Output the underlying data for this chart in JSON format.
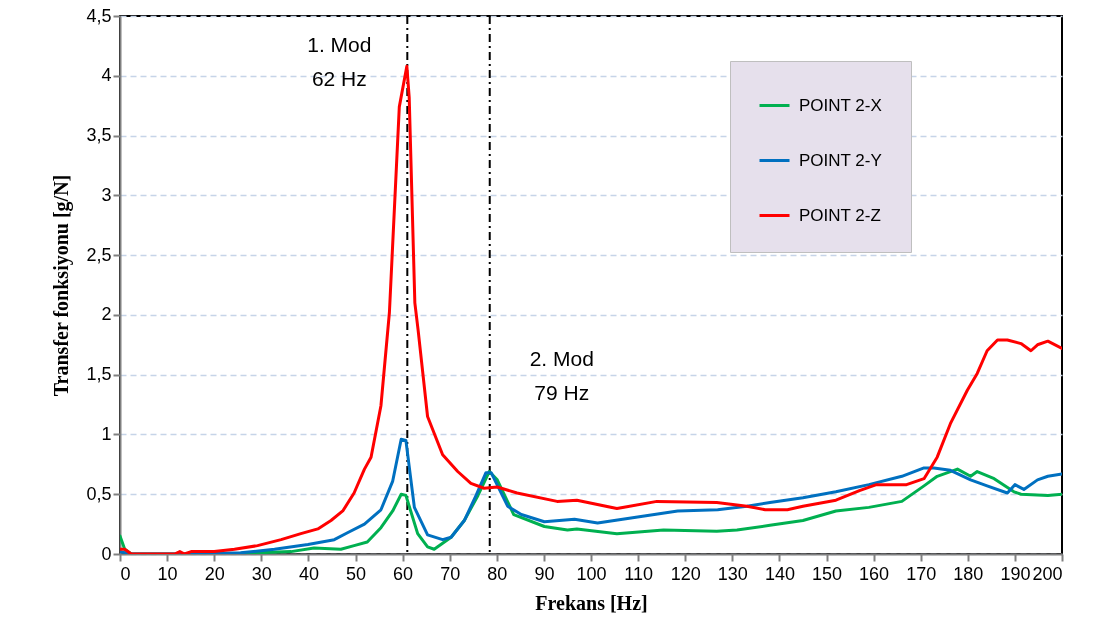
{
  "chart_data": {
    "type": "line",
    "xlabel": "Frekans [Hz]",
    "ylabel": "Transfer fonksiyonu [g/N]",
    "xlim": [
      0,
      200
    ],
    "xticks": [
      0,
      10,
      20,
      30,
      40,
      50,
      60,
      70,
      80,
      90,
      100,
      110,
      120,
      130,
      140,
      150,
      160,
      170,
      180,
      190,
      200
    ],
    "ylim": [
      0,
      4.5
    ],
    "yticks": [
      0,
      {
        "value": 0.5,
        "label": "0,5"
      },
      1,
      {
        "value": 1.5,
        "label": "1,5"
      },
      2,
      {
        "value": 2.5,
        "label": "2,5"
      },
      3,
      {
        "value": 3.5,
        "label": "3,5"
      },
      4,
      {
        "value": 4.5,
        "label": "4,5"
      }
    ],
    "grid": "y",
    "legend": "top right",
    "series": [
      {
        "name": "POINT 2-X",
        "color": "#00b050",
        "x": [
          0,
          1,
          2.4,
          25.6,
          29.2,
          36.3,
          41.2,
          46.9,
          49.7,
          52.5,
          55.4,
          57.9,
          59.7,
          60.7,
          63.2,
          65.3,
          66.7,
          70.3,
          73.1,
          76,
          78.4,
          80.1,
          83.6,
          90.1,
          95,
          97,
          105.5,
          115.4,
          126.7,
          131,
          138,
          145,
          152,
          159,
          166,
          170.7,
          173.5,
          177.8,
          180.6,
          182,
          185.6,
          189.8,
          191.3,
          197,
          200
        ],
        "values": [
          0.15,
          0.04,
          0,
          0,
          0.01,
          0.02,
          0.05,
          0.04,
          0.07,
          0.1,
          0.22,
          0.36,
          0.5,
          0.49,
          0.17,
          0.06,
          0.04,
          0.14,
          0.28,
          0.49,
          0.69,
          0.62,
          0.33,
          0.23,
          0.2,
          0.21,
          0.17,
          0.2,
          0.19,
          0.2,
          0.24,
          0.28,
          0.36,
          0.39,
          0.44,
          0.57,
          0.65,
          0.71,
          0.65,
          0.69,
          0.63,
          0.52,
          0.5,
          0.49,
          0.5
        ]
      },
      {
        "name": "POINT 2-Y",
        "color": "#0070c0",
        "x": [
          0,
          2.4,
          15,
          25.6,
          32.8,
          39.9,
          45.5,
          48.4,
          51.9,
          55.4,
          57.9,
          59.7,
          60.7,
          62.5,
          65.3,
          68.5,
          70.3,
          73.1,
          75.6,
          77.7,
          78.8,
          82.3,
          85.2,
          90.1,
          96.5,
          101.4,
          109.9,
          118.4,
          126.9,
          133.1,
          138,
          145,
          152,
          159,
          166,
          170.7,
          172.8,
          176.3,
          180.6,
          184.1,
          188.4,
          190,
          191.9,
          194.8,
          197,
          200
        ],
        "values": [
          0.02,
          0,
          0,
          0.01,
          0.04,
          0.08,
          0.12,
          0.18,
          0.25,
          0.37,
          0.61,
          0.96,
          0.95,
          0.39,
          0.16,
          0.12,
          0.14,
          0.28,
          0.49,
          0.68,
          0.68,
          0.4,
          0.33,
          0.27,
          0.29,
          0.26,
          0.31,
          0.36,
          0.37,
          0.4,
          0.43,
          0.47,
          0.52,
          0.58,
          0.65,
          0.72,
          0.72,
          0.7,
          0.62,
          0.57,
          0.51,
          0.58,
          0.54,
          0.62,
          0.65,
          0.67
        ]
      },
      {
        "name": "POINT 2-Z",
        "color": "#ff0000",
        "x": [
          0,
          1,
          2.4,
          11.6,
          12.7,
          13.7,
          15.1,
          20,
          24.3,
          29.2,
          34.2,
          38.4,
          42,
          44.8,
          47.3,
          49.7,
          51.9,
          53.3,
          55.4,
          57.2,
          59.3,
          60.9,
          61.4,
          62.6,
          63.3,
          65.3,
          68.5,
          71.7,
          74.5,
          77.3,
          80.1,
          84.3,
          92.8,
          97,
          105.5,
          114,
          126.7,
          133.1,
          137,
          141.7,
          145,
          152,
          157,
          160.6,
          167,
          170.7,
          173.5,
          176.3,
          179.9,
          182,
          184.1,
          186.3,
          188.4,
          191.3,
          193.4,
          194.8,
          197,
          200
        ],
        "values": [
          0.04,
          0.04,
          0,
          0,
          0.02,
          0,
          0.02,
          0.02,
          0.04,
          0.07,
          0.12,
          0.17,
          0.21,
          0.28,
          0.36,
          0.51,
          0.71,
          0.81,
          1.24,
          2.02,
          3.74,
          4.08,
          3.82,
          2.1,
          1.87,
          1.15,
          0.83,
          0.69,
          0.59,
          0.55,
          0.56,
          0.51,
          0.44,
          0.45,
          0.38,
          0.44,
          0.43,
          0.4,
          0.37,
          0.37,
          0.4,
          0.45,
          0.53,
          0.58,
          0.58,
          0.63,
          0.81,
          1.09,
          1.37,
          1.51,
          1.7,
          1.79,
          1.79,
          1.76,
          1.7,
          1.75,
          1.78,
          1.72
        ]
      }
    ],
    "ref_lines": [
      {
        "axis": "x",
        "value": 61,
        "label": "1. Mod",
        "color": "#000000",
        "line_style": "dashdot"
      },
      {
        "axis": "x",
        "value": 78.5,
        "label": "2. Mod",
        "color": "#000000",
        "line_style": "dashdot"
      }
    ],
    "annotations": [
      "62 Hz",
      "79 Hz"
    ]
  }
}
